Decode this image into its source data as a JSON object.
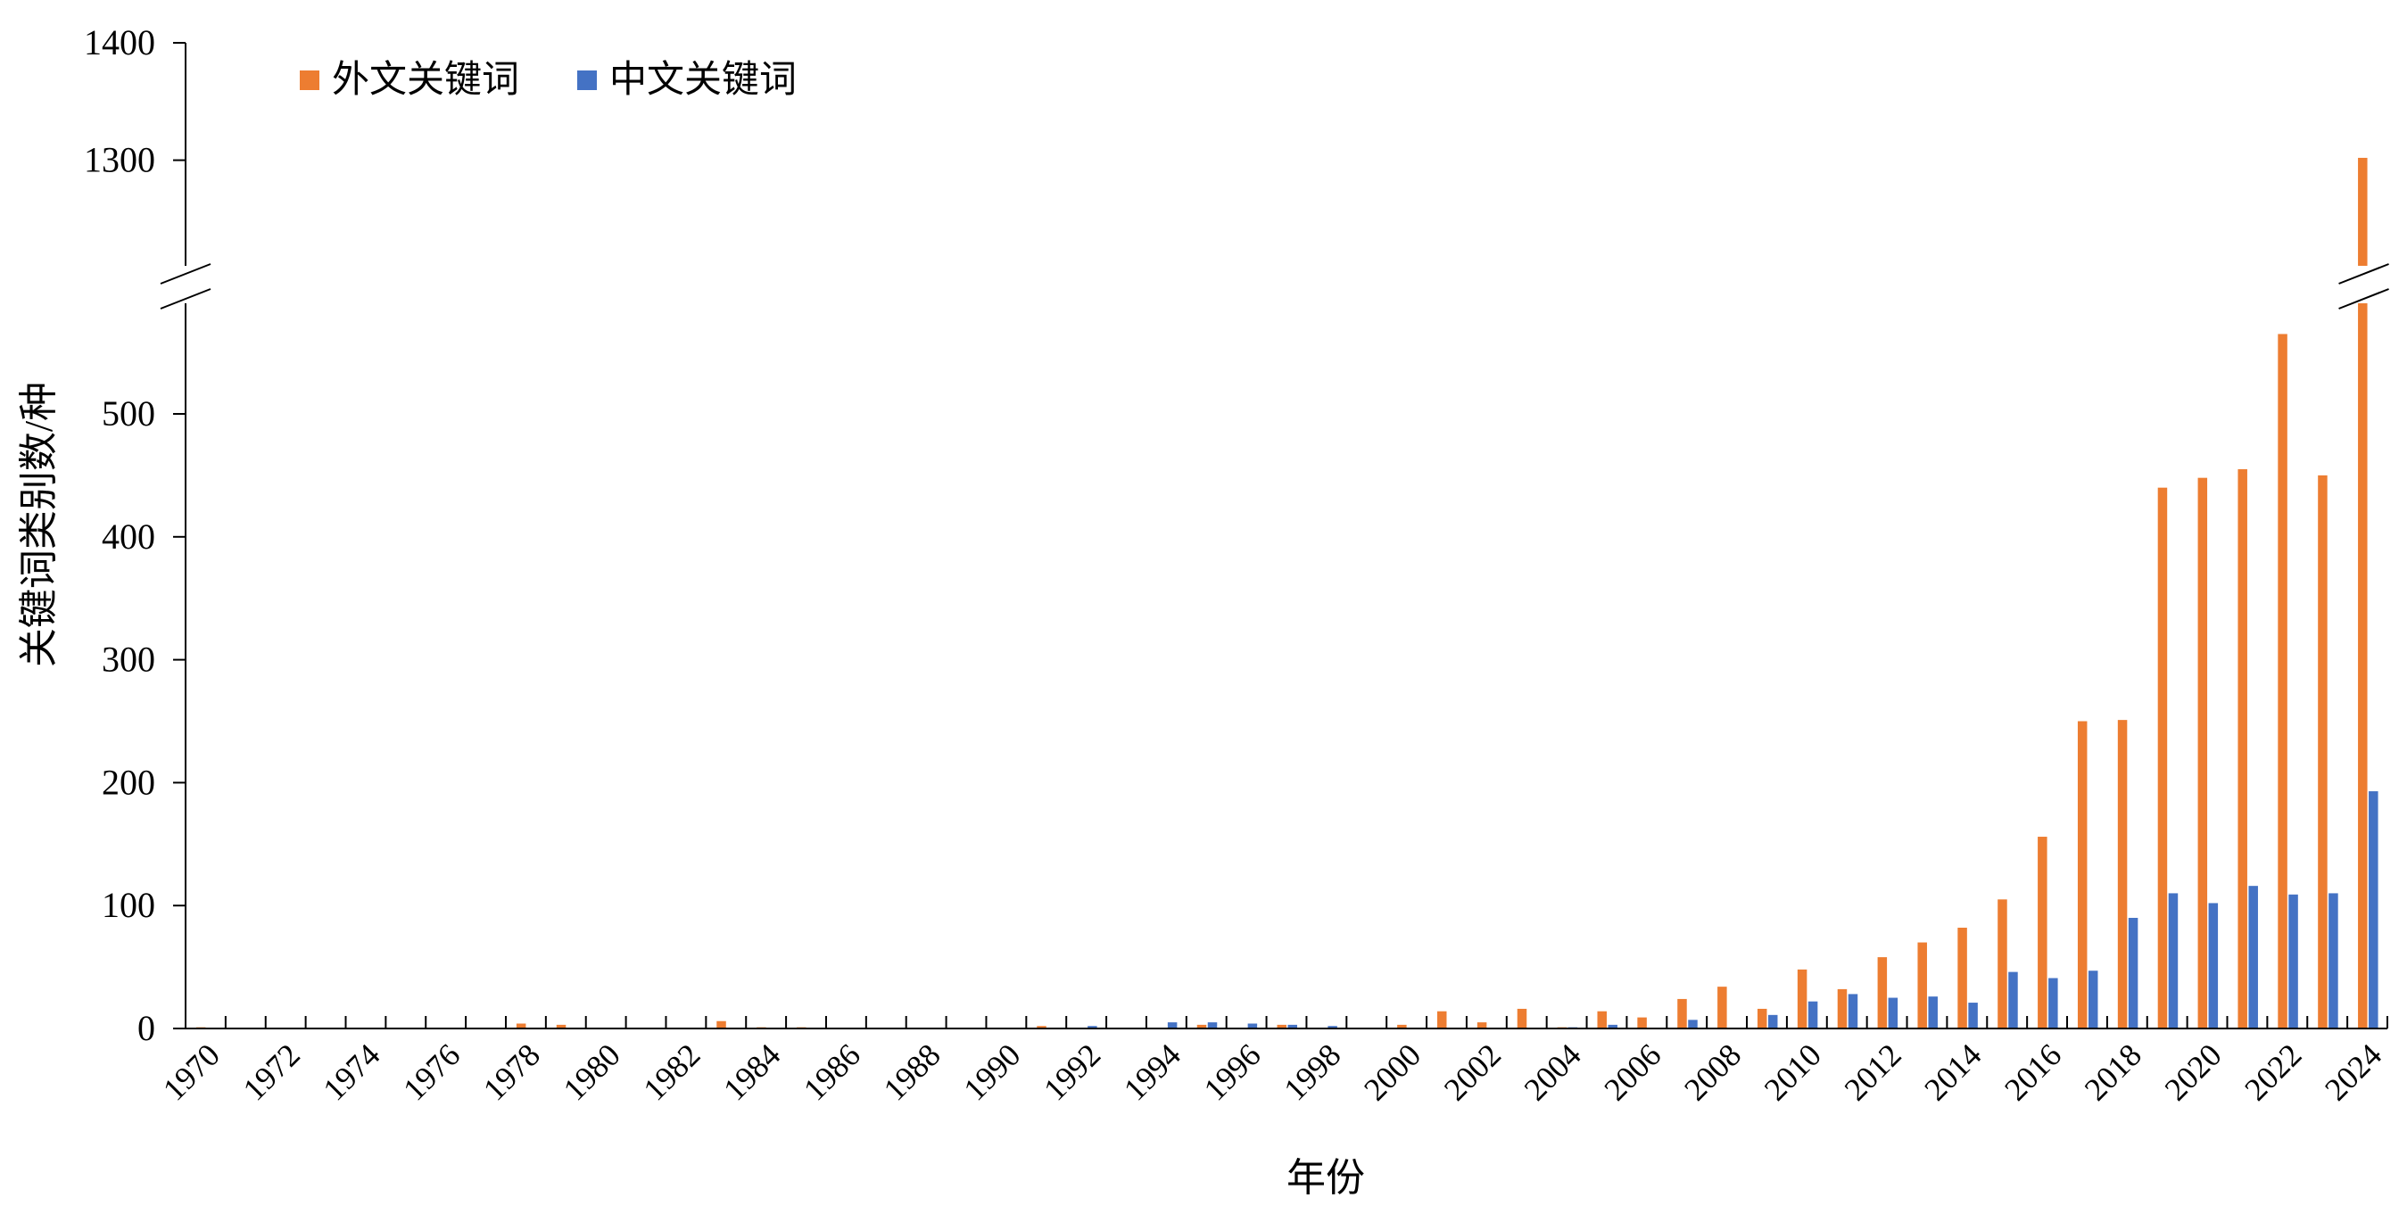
{
  "chart_data": {
    "type": "bar",
    "xlabel": "年份",
    "ylabel": "关键词类别数/种",
    "ylim": [
      0,
      1400
    ],
    "axis_break": [
      590,
      1210
    ],
    "yticks": [
      0,
      100,
      200,
      300,
      400,
      500,
      1300,
      1400
    ],
    "legend_position": "top-left",
    "grid": false,
    "categories": [
      "1970",
      "1971",
      "1972",
      "1973",
      "1974",
      "1975",
      "1976",
      "1977",
      "1978",
      "1979",
      "1980",
      "1981",
      "1982",
      "1983",
      "1984",
      "1985",
      "1986",
      "1987",
      "1988",
      "1989",
      "1990",
      "1991",
      "1992",
      "1993",
      "1994",
      "1995",
      "1996",
      "1997",
      "1998",
      "1999",
      "2000",
      "2001",
      "2002",
      "2003",
      "2004",
      "2005",
      "2006",
      "2007",
      "2008",
      "2009",
      "2010",
      "2011",
      "2012",
      "2013",
      "2014",
      "2015",
      "2016",
      "2017",
      "2018",
      "2019",
      "2020",
      "2021",
      "2022",
      "2023",
      "2024"
    ],
    "x_tick_labels": [
      "1970",
      "1972",
      "1974",
      "1976",
      "1978",
      "1980",
      "1982",
      "1984",
      "1986",
      "1988",
      "1990",
      "1992",
      "1994",
      "1996",
      "1998",
      "2000",
      "2002",
      "2004",
      "2006",
      "2008",
      "2010",
      "2012",
      "2014",
      "2016",
      "2018",
      "2020",
      "2022",
      "2024"
    ],
    "series": [
      {
        "name": "外文关键词",
        "color": "#ED7D31",
        "values": [
          1,
          0,
          0,
          0,
          0,
          0,
          0,
          0,
          4,
          3,
          0,
          0,
          0,
          6,
          1,
          1,
          0,
          0,
          0,
          0,
          0,
          2,
          0,
          0,
          0,
          3,
          0,
          3,
          0,
          0,
          3,
          14,
          5,
          16,
          1,
          14,
          9,
          24,
          34,
          16,
          48,
          32,
          58,
          70,
          82,
          105,
          156,
          250,
          251,
          440,
          448,
          455,
          565,
          450,
          1302
        ]
      },
      {
        "name": "中文关键词",
        "color": "#4472C4",
        "values": [
          0,
          0,
          0,
          0,
          0,
          0,
          0,
          0,
          0,
          0,
          0,
          0,
          0,
          0,
          0,
          0,
          0,
          0,
          0,
          0,
          0,
          0,
          2,
          0,
          5,
          5,
          4,
          3,
          2,
          0,
          0,
          0,
          0,
          0,
          1,
          3,
          0,
          7,
          0,
          11,
          22,
          28,
          25,
          26,
          21,
          46,
          41,
          47,
          90,
          110,
          102,
          116,
          109,
          110,
          193
        ]
      }
    ]
  }
}
